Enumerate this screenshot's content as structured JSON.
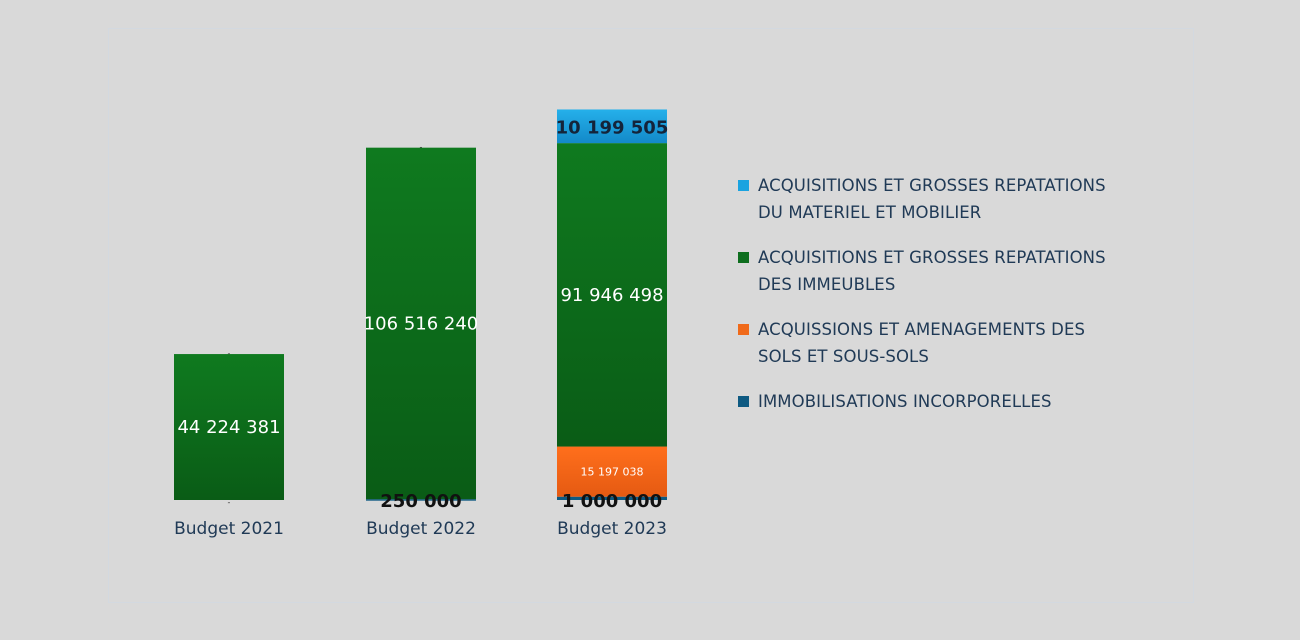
{
  "chart_data": {
    "type": "bar",
    "stacked": true,
    "categories": [
      "Budget 2021",
      "Budget 2022",
      "Budget 2023"
    ],
    "series": [
      {
        "name": "IMMOBILISATIONS INCORPORELLES",
        "color": "#0e5a82",
        "values": [
          0,
          250000,
          1000000
        ],
        "labels": [
          "-",
          "250 000",
          "1 000 000"
        ]
      },
      {
        "name": "ACQUISSIONS ET AMENAGEMENTS DES SOLS ET SOUS-SOLS",
        "color": "#f06a1a",
        "values": [
          0,
          0,
          15197038
        ],
        "labels": [
          "",
          "",
          "15 197 038"
        ]
      },
      {
        "name": "ACQUISITIONS ET GROSSES REPATATIONS DES IMMEUBLES",
        "color": "#0e6e1e",
        "values": [
          44224381,
          106516240,
          91946498
        ],
        "labels": [
          "44 224 381",
          "106 516 240",
          "91 946 498"
        ]
      },
      {
        "name": "ACQUISITIONS ET GROSSES REPATATIONS DU MATERIEL ET MOBILIER",
        "color": "#1aa3e0",
        "values": [
          0,
          0,
          10199505
        ],
        "labels": [
          "-",
          "-",
          "10 199 505"
        ]
      }
    ],
    "legend": {
      "position": "right",
      "order": [
        3,
        2,
        1,
        0
      ]
    },
    "legend_lines": [
      [
        "ACQUISITIONS ET GROSSES REPATATIONS",
        "DU MATERIEL ET MOBILIER"
      ],
      [
        "ACQUISITIONS ET GROSSES REPATATIONS",
        "DES IMMEUBLES"
      ],
      [
        "ACQUISSIONS ET AMENAGEMENTS DES",
        "SOLS ET SOUS-SOLS"
      ],
      [
        "IMMOBILISATIONS INCORPORELLES"
      ]
    ],
    "grid": false
  }
}
